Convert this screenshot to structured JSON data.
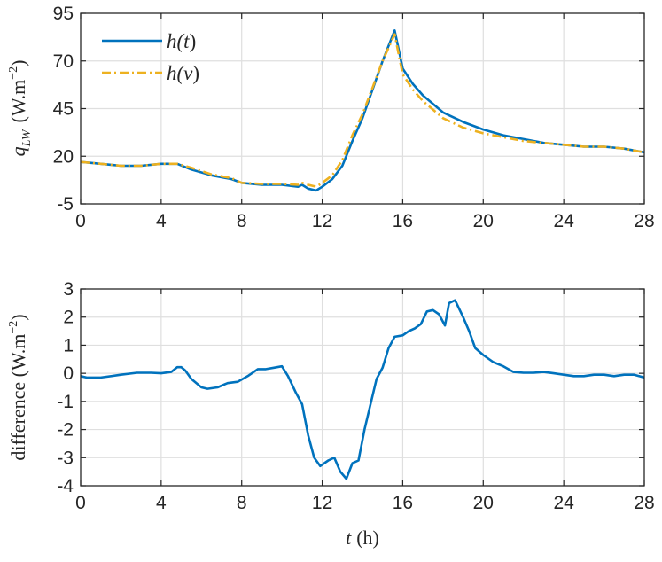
{
  "colors": {
    "series1": "#0072BD",
    "series2": "#EDB120",
    "text": "#262626",
    "grid": "#dfdfdf"
  },
  "chart_data": [
    {
      "type": "line",
      "xlim": [
        0,
        28
      ],
      "ylim": [
        -5,
        95
      ],
      "xticks": [
        0,
        4,
        8,
        12,
        16,
        20,
        24,
        28
      ],
      "yticks": [
        -5,
        20,
        45,
        70,
        95
      ],
      "xtick_labels": [
        "0",
        "4",
        "8",
        "12",
        "16",
        "20",
        "24",
        "28"
      ],
      "ytick_labels": [
        "-5",
        "20",
        "45",
        "70",
        "95"
      ],
      "xlabel": "",
      "ylabel_symbol": "q",
      "ylabel_subscript": "LW",
      "ylabel_units": "(W.m",
      "ylabel_exp": "−2",
      "ylabel_close": ")",
      "grid": true,
      "legend_position": "top-left",
      "series": [
        {
          "name": "h(t)",
          "style": "solid",
          "x": [
            0,
            1,
            2,
            3,
            4,
            4.8,
            5.5,
            6.5,
            7.5,
            8,
            9,
            10,
            10.8,
            11,
            11.3,
            11.7,
            12,
            12.5,
            13,
            13.5,
            14,
            14.5,
            15,
            15.6,
            16,
            16.5,
            17,
            18,
            19,
            20,
            21,
            22,
            23,
            24,
            25,
            26,
            27,
            28
          ],
          "y": [
            17,
            16,
            15,
            15,
            16,
            16,
            13,
            10,
            8,
            6,
            5,
            5,
            4,
            5,
            3,
            2,
            4,
            8,
            15,
            28,
            40,
            55,
            70,
            86,
            66,
            58,
            52,
            43,
            38,
            34,
            31,
            29,
            27,
            26,
            25,
            25,
            24,
            22
          ]
        },
        {
          "name": "h(v)",
          "style": "dash-dot",
          "x": [
            0,
            1,
            2,
            3,
            4,
            4.8,
            5.5,
            6.5,
            7.5,
            8,
            9,
            10,
            10.8,
            11,
            11.3,
            11.7,
            12,
            12.5,
            13,
            13.5,
            14,
            14.5,
            15,
            15.6,
            16,
            16.5,
            17,
            18,
            19,
            20,
            21,
            22,
            23,
            24,
            25,
            26,
            27,
            28
          ],
          "y": [
            17,
            16,
            15,
            15,
            16,
            16,
            14,
            10.5,
            8.5,
            6,
            5.5,
            5.5,
            5,
            6,
            5,
            4,
            6,
            10,
            18,
            31,
            42,
            56,
            70,
            84,
            63,
            55,
            49,
            40,
            35,
            32,
            30,
            28,
            27,
            26,
            25,
            25,
            24,
            22
          ]
        }
      ],
      "legend_labels": {
        "s1_pre": "h(",
        "s1_var": "t",
        "s2_pre": "h(",
        "s2_var": "v",
        "close": ")"
      }
    },
    {
      "type": "line",
      "xlim": [
        0,
        28
      ],
      "ylim": [
        -4,
        3
      ],
      "xticks": [
        0,
        4,
        8,
        12,
        16,
        20,
        24,
        28
      ],
      "yticks": [
        -4,
        -3,
        -2,
        -1,
        0,
        1,
        2,
        3
      ],
      "xtick_labels": [
        "0",
        "4",
        "8",
        "12",
        "16",
        "20",
        "24",
        "28"
      ],
      "ytick_labels": [
        "-4",
        "-3",
        "-2",
        "-1",
        "0",
        "1",
        "2",
        "3"
      ],
      "xlabel_var": "t",
      "xlabel_unit": "(h)",
      "ylabel_text": "difference (W.m",
      "ylabel_exp": "−2",
      "ylabel_close": ")",
      "grid": true,
      "series": [
        {
          "name": "",
          "style": "solid",
          "x": [
            0,
            0.3,
            1,
            2,
            2.8,
            3.5,
            4,
            4.5,
            4.8,
            5,
            5.2,
            5.5,
            6,
            6.3,
            6.8,
            7.3,
            7.8,
            8.3,
            8.8,
            9.2,
            9.6,
            10,
            10.3,
            10.7,
            11,
            11.3,
            11.6,
            11.9,
            12.3,
            12.6,
            12.9,
            13.2,
            13.5,
            13.8,
            14.1,
            14.4,
            14.7,
            15,
            15.3,
            15.6,
            16,
            16.3,
            16.6,
            16.9,
            17.2,
            17.5,
            17.8,
            18.1,
            18.3,
            18.6,
            19,
            19.3,
            19.6,
            20,
            20.5,
            21,
            21.5,
            22,
            22.5,
            23,
            23.5,
            24,
            24.5,
            25,
            25.5,
            26,
            26.5,
            27,
            27.5,
            28
          ],
          "y": [
            -0.1,
            -0.15,
            -0.15,
            -0.05,
            0.02,
            0.02,
            0.0,
            0.05,
            0.22,
            0.22,
            0.1,
            -0.2,
            -0.5,
            -0.55,
            -0.5,
            -0.35,
            -0.3,
            -0.1,
            0.15,
            0.15,
            0.2,
            0.25,
            -0.1,
            -0.7,
            -1.1,
            -2.2,
            -3.0,
            -3.3,
            -3.1,
            -3.0,
            -3.5,
            -3.75,
            -3.2,
            -3.1,
            -2.0,
            -1.1,
            -0.2,
            0.2,
            0.9,
            1.3,
            1.35,
            1.5,
            1.6,
            1.75,
            2.2,
            2.25,
            2.1,
            1.7,
            2.5,
            2.6,
            2.0,
            1.5,
            0.9,
            0.65,
            0.4,
            0.25,
            0.05,
            0.02,
            0.02,
            0.05,
            0.0,
            -0.05,
            -0.1,
            -0.1,
            -0.05,
            -0.05,
            -0.1,
            -0.05,
            -0.05,
            -0.15
          ]
        }
      ]
    }
  ]
}
